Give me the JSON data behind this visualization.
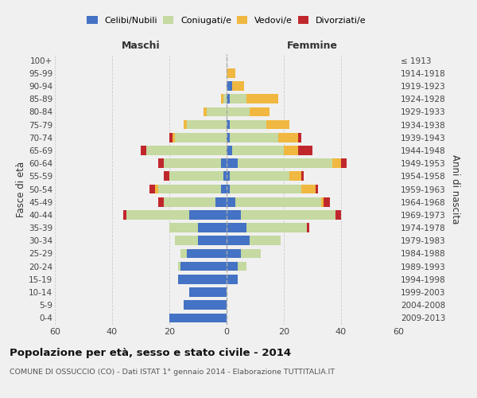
{
  "age_groups": [
    "0-4",
    "5-9",
    "10-14",
    "15-19",
    "20-24",
    "25-29",
    "30-34",
    "35-39",
    "40-44",
    "45-49",
    "50-54",
    "55-59",
    "60-64",
    "65-69",
    "70-74",
    "75-79",
    "80-84",
    "85-89",
    "90-94",
    "95-99",
    "100+"
  ],
  "birth_years": [
    "2009-2013",
    "2004-2008",
    "1999-2003",
    "1994-1998",
    "1989-1993",
    "1984-1988",
    "1979-1983",
    "1974-1978",
    "1969-1973",
    "1964-1968",
    "1959-1963",
    "1954-1958",
    "1949-1953",
    "1944-1948",
    "1939-1943",
    "1934-1938",
    "1929-1933",
    "1924-1928",
    "1919-1923",
    "1914-1918",
    "≤ 1913"
  ],
  "colors": {
    "celibi": "#4472c4",
    "coniugati": "#c5d9a0",
    "vedovi": "#f0b840",
    "divorziati": "#c0272d"
  },
  "maschi": {
    "celibi": [
      20,
      15,
      13,
      17,
      16,
      14,
      10,
      10,
      13,
      4,
      2,
      1,
      2,
      0,
      0,
      0,
      0,
      0,
      0,
      0,
      0
    ],
    "coniugati": [
      0,
      0,
      0,
      0,
      1,
      2,
      8,
      10,
      22,
      18,
      22,
      19,
      20,
      28,
      18,
      14,
      7,
      1,
      0,
      0,
      0
    ],
    "vedovi": [
      0,
      0,
      0,
      0,
      0,
      0,
      0,
      0,
      0,
      0,
      1,
      0,
      0,
      0,
      1,
      1,
      1,
      1,
      0,
      0,
      0
    ],
    "divorziati": [
      0,
      0,
      0,
      0,
      0,
      0,
      0,
      0,
      1,
      2,
      2,
      2,
      2,
      2,
      1,
      0,
      0,
      0,
      0,
      0,
      0
    ]
  },
  "femmine": {
    "celibi": [
      0,
      0,
      0,
      4,
      4,
      5,
      8,
      7,
      5,
      3,
      1,
      1,
      4,
      2,
      1,
      1,
      0,
      1,
      2,
      0,
      0
    ],
    "coniugati": [
      0,
      0,
      0,
      0,
      3,
      7,
      11,
      21,
      33,
      30,
      25,
      21,
      33,
      18,
      17,
      13,
      8,
      6,
      0,
      0,
      0
    ],
    "vedovi": [
      0,
      0,
      0,
      0,
      0,
      0,
      0,
      0,
      0,
      1,
      5,
      4,
      3,
      5,
      7,
      8,
      7,
      11,
      4,
      3,
      0
    ],
    "divorziati": [
      0,
      0,
      0,
      0,
      0,
      0,
      0,
      1,
      2,
      2,
      1,
      1,
      2,
      5,
      1,
      0,
      0,
      0,
      0,
      0,
      0
    ]
  },
  "xlim": 60,
  "title": "Popolazione per età, sesso e stato civile - 2014",
  "subtitle": "COMUNE DI OSSUCCIO (CO) - Dati ISTAT 1° gennaio 2014 - Elaborazione TUTTITALIA.IT",
  "ylabel_left": "Fasce di età",
  "ylabel_right": "Anni di nascita",
  "xlabel_maschi": "Maschi",
  "xlabel_femmine": "Femmine",
  "bg_color": "#f0f0f0",
  "grid_color": "#cccccc"
}
